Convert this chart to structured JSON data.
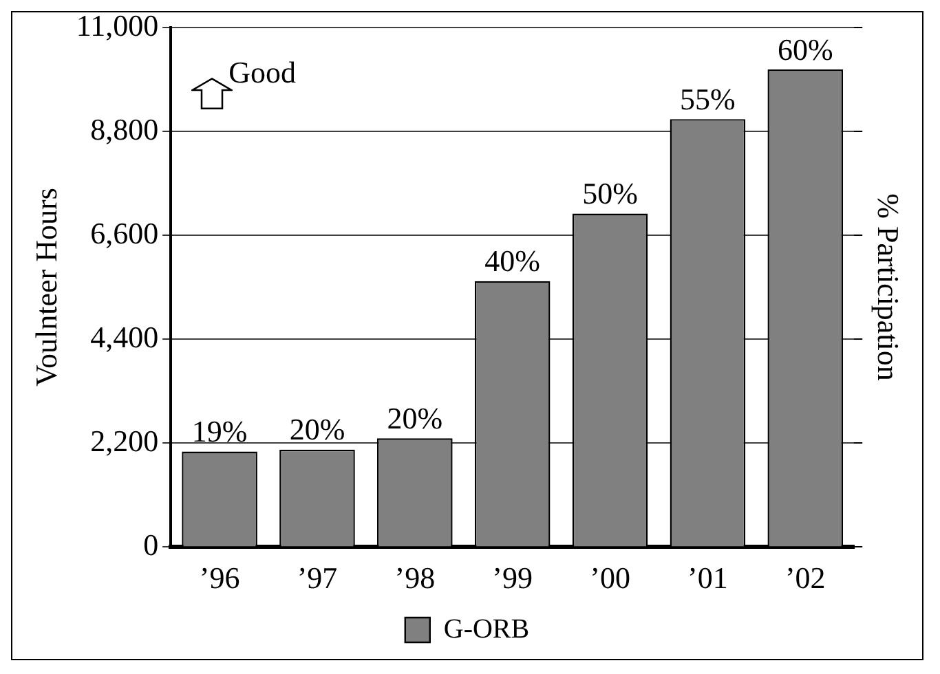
{
  "chart_data": {
    "type": "bar",
    "ylabel": "Voulnteer Hours",
    "y2label": "% Participation",
    "categories": [
      "’96",
      "’97",
      "’98",
      "’99",
      "’00",
      "’01",
      "’02"
    ],
    "series": [
      {
        "name": "G-ORB",
        "color": "#808080",
        "values": [
          2020,
          2060,
          2300,
          5630,
          7060,
          9060,
          10110
        ]
      }
    ],
    "ylim": [
      0,
      11000
    ],
    "yticks": [
      {
        "value": 0,
        "label": "0"
      },
      {
        "value": 2200,
        "label": "2,200"
      },
      {
        "value": 4400,
        "label": "4,400"
      },
      {
        "value": 6600,
        "label": "6,600"
      },
      {
        "value": 8800,
        "label": "8,800"
      },
      {
        "value": 11000,
        "label": "11,000"
      }
    ],
    "annotations": [
      "Good",
      {
        "text": "19%",
        "x": "’96",
        "y": 2020
      },
      {
        "text": "20%",
        "x": "’97",
        "y": 2060
      },
      {
        "text": "20%",
        "x": "’98",
        "y": 2300
      },
      {
        "text": "40%",
        "x": "’99",
        "y": 5630
      },
      {
        "text": "50%",
        "x": "’00",
        "y": 7060
      },
      {
        "text": "55%",
        "x": "’01",
        "y": 9060
      },
      {
        "text": "60%",
        "x": "’02",
        "y": 10110
      }
    ],
    "grid": "y",
    "legend": "bottom"
  }
}
